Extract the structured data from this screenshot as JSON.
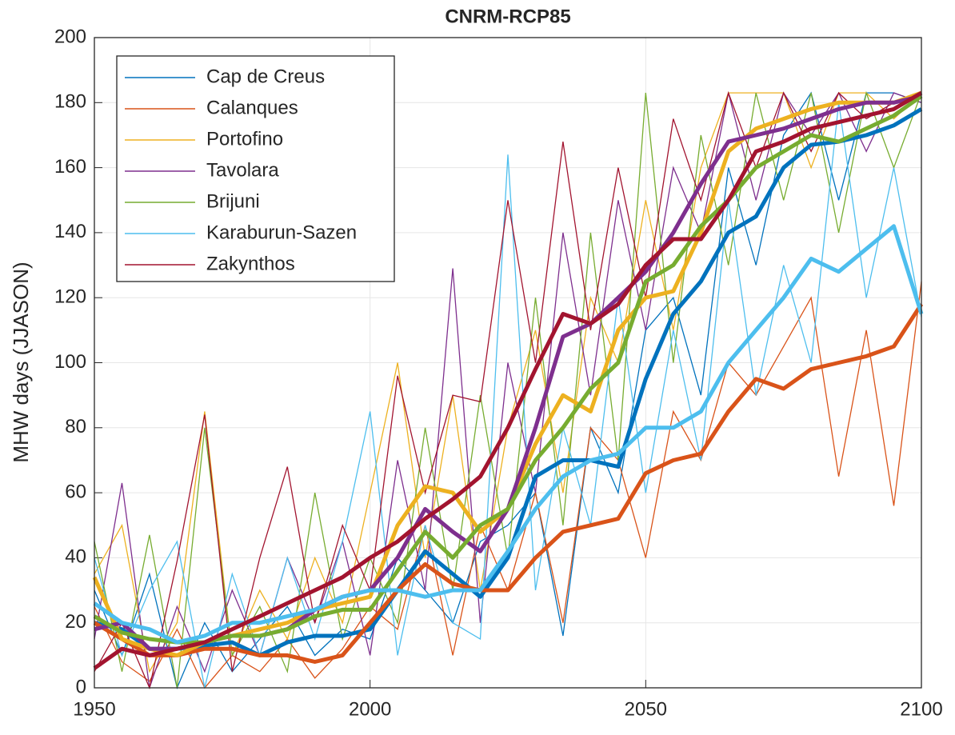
{
  "chart_data": {
    "type": "line",
    "title": "CNRM-RCP85",
    "ylabel": "MHW days (JJASON)",
    "x": [
      1950,
      1955,
      1960,
      1965,
      1970,
      1975,
      1980,
      1985,
      1990,
      1995,
      2000,
      2005,
      2010,
      2015,
      2020,
      2025,
      2030,
      2035,
      2040,
      2045,
      2050,
      2055,
      2060,
      2065,
      2070,
      2075,
      2080,
      2085,
      2090,
      2095,
      2100
    ],
    "xlim": [
      1950,
      2100
    ],
    "xticks": [
      1950,
      2000,
      2050,
      2100
    ],
    "ylim": [
      0,
      200
    ],
    "yticks": [
      0,
      20,
      40,
      60,
      80,
      100,
      120,
      140,
      160,
      180,
      200
    ],
    "grid": true,
    "legend": "upper left",
    "series": [
      {
        "name": "Cap de Creus",
        "color": "#0072bd",
        "values": [
          30,
          10,
          35,
          0,
          20,
          5,
          15,
          25,
          10,
          18,
          15,
          40,
          30,
          20,
          45,
          50,
          60,
          16,
          80,
          60,
          110,
          120,
          90,
          160,
          130,
          170,
          183,
          150,
          183,
          183,
          180
        ],
        "smoothed": [
          20,
          18,
          12,
          12,
          13,
          14,
          10,
          14,
          16,
          16,
          18,
          30,
          42,
          35,
          28,
          40,
          65,
          70,
          70,
          68,
          95,
          115,
          125,
          140,
          145,
          160,
          167,
          168,
          170,
          173,
          178
        ]
      },
      {
        "name": "Calanques",
        "color": "#d95319",
        "values": [
          25,
          8,
          2,
          18,
          0,
          10,
          5,
          15,
          3,
          12,
          25,
          18,
          50,
          10,
          50,
          30,
          60,
          20,
          80,
          70,
          40,
          85,
          70,
          100,
          90,
          105,
          120,
          65,
          110,
          56,
          125
        ],
        "smoothed": [
          20,
          15,
          10,
          10,
          12,
          12,
          10,
          10,
          8,
          10,
          20,
          30,
          38,
          32,
          30,
          30,
          40,
          48,
          50,
          52,
          66,
          70,
          72,
          85,
          95,
          92,
          98,
          100,
          102,
          105,
          118
        ]
      },
      {
        "name": "Portofino",
        "color": "#edb120",
        "values": [
          35,
          50,
          5,
          20,
          85,
          10,
          30,
          15,
          40,
          20,
          60,
          100,
          40,
          90,
          30,
          80,
          110,
          60,
          120,
          100,
          150,
          110,
          160,
          183,
          183,
          183,
          160,
          183,
          183,
          175,
          183
        ],
        "smoothed": [
          34,
          15,
          12,
          10,
          14,
          16,
          18,
          20,
          24,
          26,
          28,
          50,
          62,
          60,
          48,
          55,
          75,
          90,
          85,
          110,
          120,
          122,
          140,
          165,
          172,
          175,
          178,
          180,
          180,
          180,
          183
        ]
      },
      {
        "name": "Tavolara",
        "color": "#7e2f8e",
        "values": [
          15,
          63,
          0,
          25,
          5,
          30,
          10,
          40,
          20,
          45,
          10,
          70,
          30,
          129,
          20,
          100,
          60,
          140,
          90,
          150,
          110,
          160,
          140,
          183,
          150,
          183,
          170,
          183,
          165,
          183,
          180
        ],
        "smoothed": [
          18,
          20,
          12,
          12,
          14,
          16,
          16,
          18,
          24,
          28,
          30,
          40,
          55,
          48,
          42,
          55,
          80,
          108,
          112,
          120,
          128,
          140,
          155,
          168,
          170,
          172,
          175,
          178,
          180,
          180,
          182
        ]
      },
      {
        "name": "Brijuni",
        "color": "#77ac30",
        "values": [
          45,
          5,
          47,
          0,
          80,
          10,
          25,
          5,
          60,
          15,
          40,
          20,
          80,
          30,
          90,
          40,
          120,
          50,
          140,
          70,
          183,
          100,
          170,
          130,
          183,
          150,
          183,
          140,
          183,
          160,
          183
        ],
        "smoothed": [
          22,
          17,
          15,
          14,
          14,
          16,
          16,
          18,
          22,
          24,
          24,
          36,
          48,
          40,
          50,
          55,
          70,
          80,
          92,
          100,
          125,
          130,
          142,
          150,
          160,
          165,
          170,
          168,
          172,
          176,
          182
        ]
      },
      {
        "name": "Karaburun-Sazen",
        "color": "#4dbeee",
        "values": [
          40,
          10,
          30,
          45,
          0,
          35,
          10,
          40,
          15,
          45,
          85,
          10,
          50,
          20,
          15,
          164,
          30,
          80,
          50,
          120,
          60,
          110,
          70,
          150,
          90,
          130,
          100,
          180,
          120,
          160,
          114
        ],
        "smoothed": [
          26,
          20,
          18,
          14,
          16,
          20,
          20,
          22,
          24,
          28,
          30,
          30,
          28,
          30,
          30,
          42,
          55,
          65,
          70,
          72,
          80,
          80,
          85,
          100,
          110,
          120,
          132,
          128,
          135,
          142,
          115
        ]
      },
      {
        "name": "Zakynthos",
        "color": "#a2142f",
        "values": [
          5,
          20,
          0,
          39,
          84,
          5,
          40,
          68,
          20,
          50,
          30,
          96,
          60,
          90,
          88,
          150,
          100,
          168,
          110,
          160,
          120,
          175,
          150,
          183,
          160,
          183,
          165,
          183,
          175,
          180,
          183
        ],
        "smoothed": [
          6,
          12,
          10,
          12,
          14,
          18,
          22,
          26,
          30,
          34,
          40,
          45,
          52,
          58,
          65,
          80,
          98,
          115,
          112,
          118,
          130,
          138,
          138,
          150,
          165,
          168,
          172,
          174,
          176,
          178,
          183
        ]
      }
    ]
  }
}
